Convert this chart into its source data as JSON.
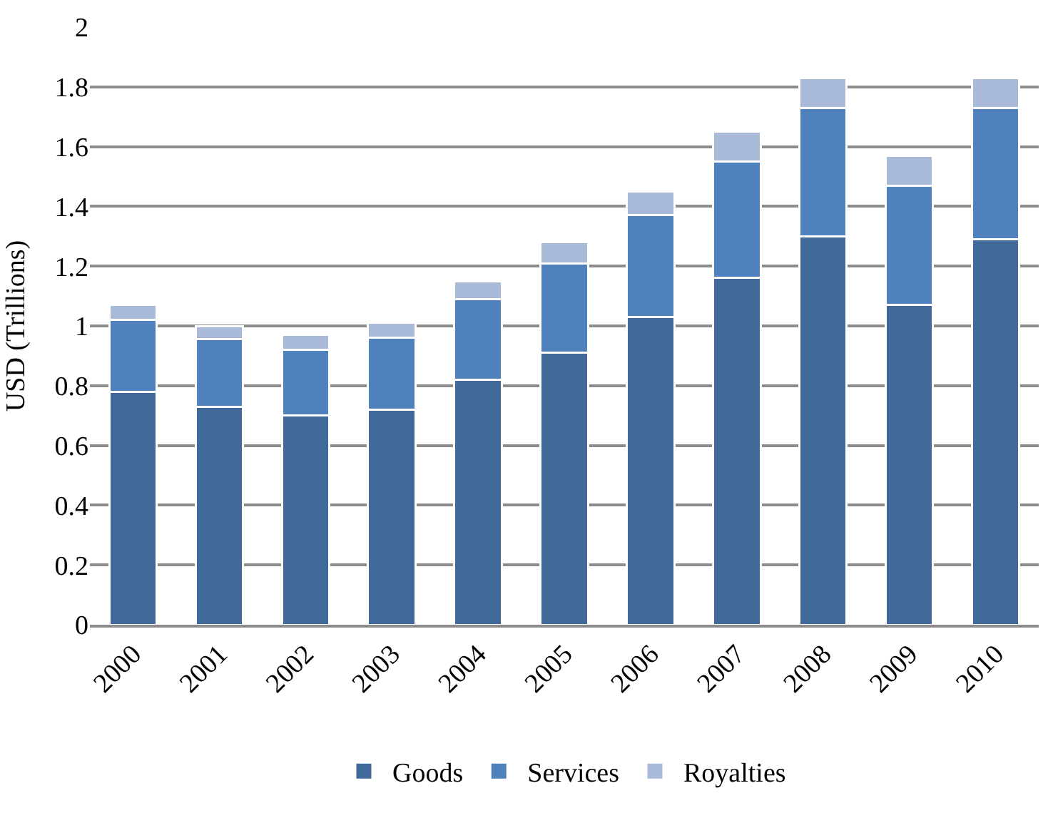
{
  "chart_data": {
    "type": "bar",
    "stacked": true,
    "ylabel": "USD (Trillions)",
    "categories": [
      "2000",
      "2001",
      "2002",
      "2003",
      "2004",
      "2005",
      "2006",
      "2007",
      "2008",
      "2009",
      "2010"
    ],
    "series": [
      {
        "name": "Goods",
        "color": "#416a9b",
        "values": [
          0.78,
          0.73,
          0.7,
          0.72,
          0.82,
          0.91,
          1.03,
          1.16,
          1.3,
          1.07,
          1.29
        ]
      },
      {
        "name": "Services",
        "color": "#4f81bd",
        "values": [
          0.24,
          0.225,
          0.22,
          0.24,
          0.27,
          0.3,
          0.34,
          0.39,
          0.43,
          0.4,
          0.44
        ]
      },
      {
        "name": "Royalties",
        "color": "#a9b9d8",
        "values": [
          0.05,
          0.045,
          0.05,
          0.05,
          0.06,
          0.07,
          0.08,
          0.1,
          0.1,
          0.1,
          0.1
        ]
      }
    ],
    "ylim": [
      0,
      2
    ],
    "yticks": [
      0,
      0.2,
      0.4,
      0.6,
      0.8,
      1,
      1.2,
      1.4,
      1.6,
      1.8,
      2
    ],
    "grid": "y",
    "legend": "bottom"
  }
}
